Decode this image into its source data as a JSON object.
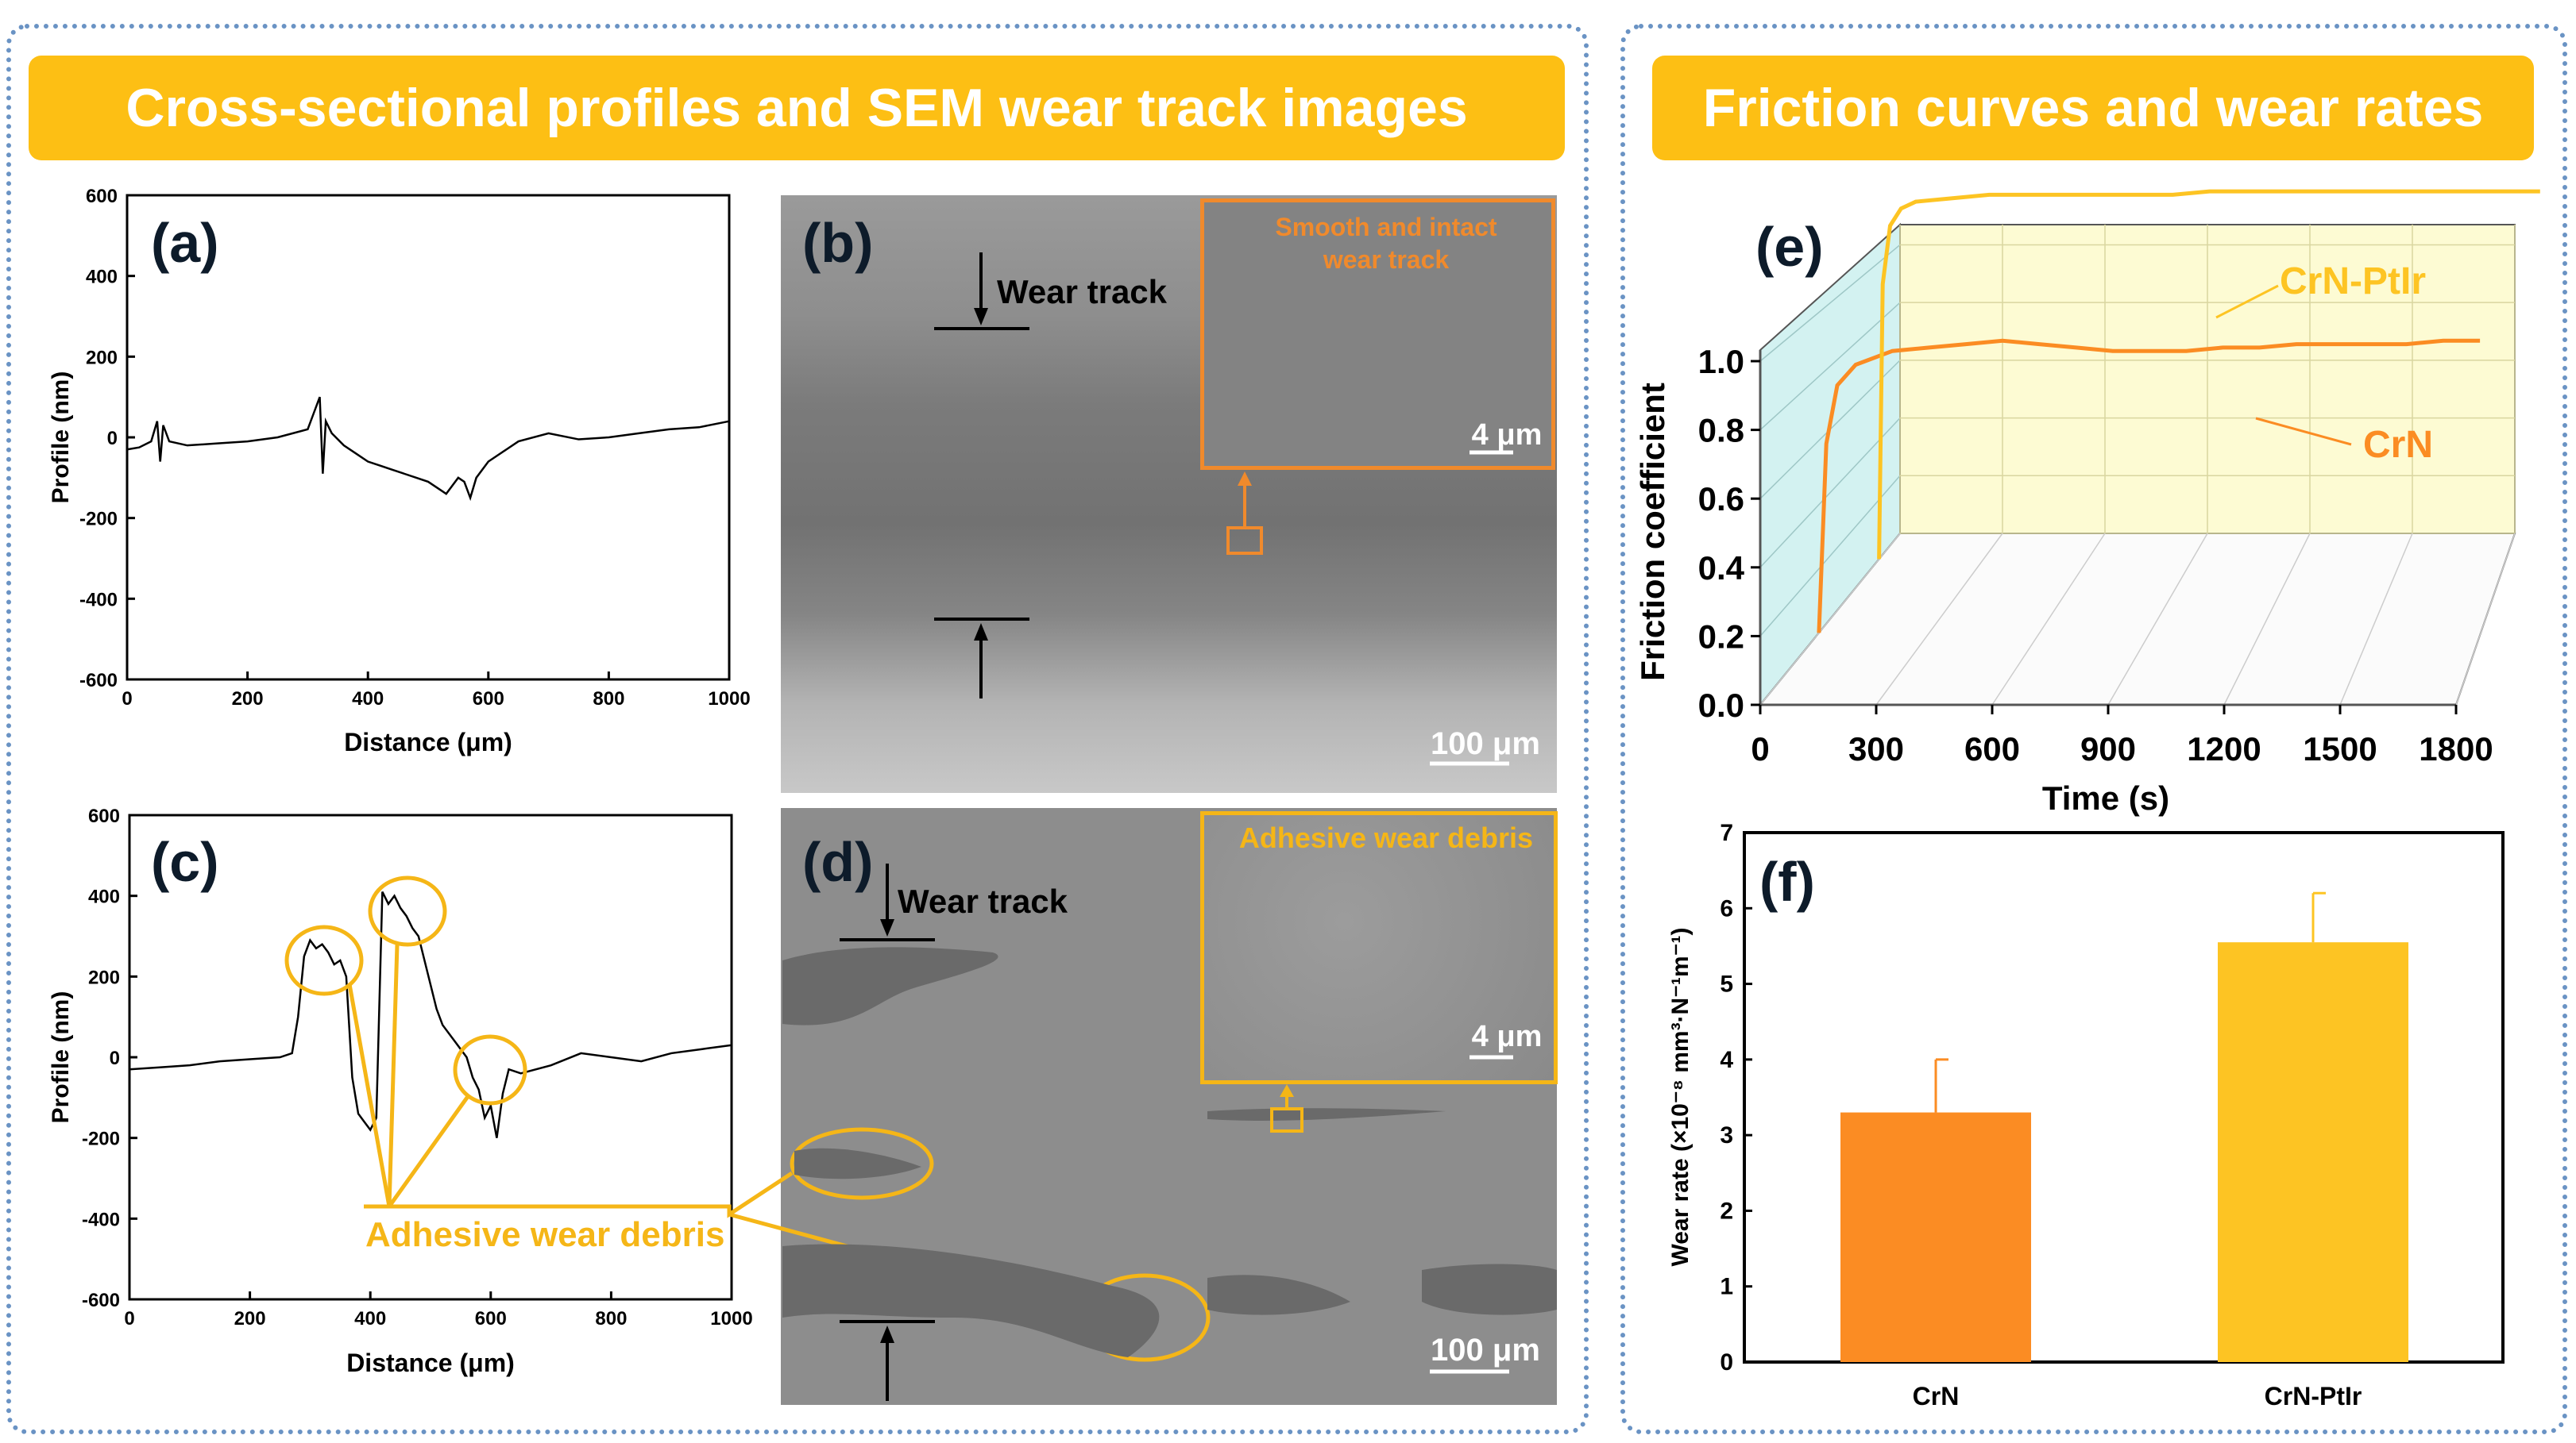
{
  "left_banner": {
    "title": "Cross-sectional profiles and SEM wear track images"
  },
  "right_banner": {
    "title": "Friction curves and wear rates"
  },
  "colors": {
    "banner": "#fdbf14",
    "frame": "#6a93c4",
    "crn": "#fb8c23",
    "crn_ptir": "#fdc423",
    "annot": "#f5b617",
    "inset_b": "#f08a2c"
  },
  "panel_a": {
    "label": "(a)",
    "xlabel": "Distance (μm)",
    "ylabel": "Profile (nm)",
    "xticks": [
      "0",
      "200",
      "400",
      "600",
      "800",
      "1000"
    ],
    "yticks": [
      "600",
      "400",
      "200",
      "0",
      "-200",
      "-400",
      "-600"
    ]
  },
  "panel_b": {
    "label": "(b)",
    "arrow_label": "Wear track",
    "inset_text": "Smooth and intact wear track",
    "inset_scale": "4 μm",
    "scale": "100 μm"
  },
  "panel_c": {
    "label": "(c)",
    "xlabel": "Distance (μm)",
    "ylabel": "Profile (nm)",
    "xticks": [
      "0",
      "200",
      "400",
      "600",
      "800",
      "1000"
    ],
    "yticks": [
      "600",
      "400",
      "200",
      "0",
      "-200",
      "-400",
      "-600"
    ],
    "annotation": "Adhesive wear debris"
  },
  "panel_d": {
    "label": "(d)",
    "arrow_label": "Wear track",
    "inset_text": "Adhesive wear debris",
    "inset_scale": "4 μm",
    "scale": "100 μm"
  },
  "chart_data": [
    {
      "type": "line",
      "panel": "(a)",
      "xlabel": "Distance (μm)",
      "ylabel": "Profile (nm)",
      "xlim": [
        0,
        1000
      ],
      "ylim": [
        -600,
        600
      ],
      "x": [
        0,
        20,
        40,
        50,
        55,
        60,
        70,
        100,
        150,
        200,
        250,
        300,
        310,
        320,
        325,
        330,
        340,
        360,
        380,
        400,
        420,
        440,
        460,
        480,
        500,
        520,
        530,
        540,
        550,
        560,
        570,
        580,
        600,
        630,
        650,
        700,
        750,
        800,
        850,
        900,
        950,
        1000
      ],
      "values": [
        -30,
        -25,
        -10,
        40,
        -60,
        30,
        -10,
        -20,
        -15,
        -10,
        0,
        20,
        60,
        100,
        -90,
        40,
        10,
        -20,
        -40,
        -60,
        -70,
        -80,
        -90,
        -100,
        -110,
        -130,
        -140,
        -120,
        -100,
        -110,
        -150,
        -100,
        -60,
        -30,
        -10,
        10,
        -5,
        0,
        10,
        20,
        25,
        40
      ]
    },
    {
      "type": "line",
      "panel": "(c)",
      "xlabel": "Distance (μm)",
      "ylabel": "Profile (nm)",
      "xlim": [
        0,
        1000
      ],
      "ylim": [
        -600,
        600
      ],
      "x": [
        0,
        50,
        100,
        150,
        200,
        250,
        270,
        280,
        290,
        300,
        310,
        320,
        330,
        340,
        350,
        360,
        370,
        380,
        390,
        400,
        410,
        420,
        430,
        440,
        450,
        460,
        470,
        480,
        490,
        500,
        510,
        520,
        540,
        560,
        570,
        580,
        590,
        600,
        610,
        620,
        630,
        650,
        700,
        750,
        800,
        850,
        900,
        950,
        1000
      ],
      "values": [
        -30,
        -25,
        -20,
        -10,
        -5,
        0,
        10,
        100,
        250,
        290,
        270,
        280,
        260,
        230,
        240,
        200,
        -50,
        -140,
        -160,
        -180,
        -150,
        410,
        380,
        400,
        370,
        350,
        320,
        300,
        240,
        180,
        120,
        80,
        40,
        0,
        -50,
        -80,
        -150,
        -120,
        -200,
        -90,
        -30,
        -40,
        -20,
        10,
        0,
        -10,
        10,
        20,
        30
      ]
    },
    {
      "type": "line",
      "panel": "(e)",
      "xlabel": "Time (s)",
      "ylabel": "Friction coefficient",
      "xlim": [
        0,
        1800
      ],
      "ylim": [
        0.0,
        1.0
      ],
      "xticks": [
        "0",
        "300",
        "600",
        "900",
        "1200",
        "1500",
        "1800"
      ],
      "yticks": [
        "0.0",
        "0.2",
        "0.4",
        "0.6",
        "0.8",
        "1.0"
      ],
      "series": [
        {
          "name": "CrN",
          "x": [
            0,
            20,
            50,
            100,
            200,
            300,
            400,
            500,
            600,
            700,
            800,
            900,
            1000,
            1100,
            1200,
            1300,
            1400,
            1500,
            1600,
            1700,
            1800
          ],
          "values": [
            0.0,
            0.55,
            0.72,
            0.78,
            0.82,
            0.83,
            0.84,
            0.85,
            0.84,
            0.83,
            0.82,
            0.82,
            0.82,
            0.83,
            0.83,
            0.84,
            0.84,
            0.84,
            0.84,
            0.85,
            0.85
          ]
        },
        {
          "name": "CrN-PtIr",
          "x": [
            0,
            10,
            30,
            60,
            100,
            200,
            300,
            400,
            500,
            600,
            700,
            800,
            900,
            1000,
            1100,
            1200,
            1300,
            1400,
            1500,
            1600,
            1700,
            1800
          ],
          "values": [
            0.0,
            0.8,
            0.97,
            1.02,
            1.04,
            1.05,
            1.06,
            1.06,
            1.06,
            1.06,
            1.06,
            1.06,
            1.07,
            1.07,
            1.07,
            1.07,
            1.07,
            1.07,
            1.07,
            1.07,
            1.07,
            1.07
          ]
        }
      ]
    },
    {
      "type": "bar",
      "panel": "(f)",
      "ylabel": "Wear rate (×10⁻⁸ mm³·N⁻¹m⁻¹)",
      "categories": [
        "CrN",
        "CrN-PtIr"
      ],
      "values": [
        3.3,
        5.55
      ],
      "errors": [
        0.7,
        0.65
      ],
      "ylim": [
        0,
        7
      ],
      "yticks": [
        "0",
        "1",
        "2",
        "3",
        "4",
        "5",
        "6",
        "7"
      ]
    }
  ],
  "panel_e": {
    "label": "(e)",
    "legend": [
      "CrN-PtIr",
      "CrN"
    ]
  },
  "panel_f": {
    "label": "(f)"
  }
}
